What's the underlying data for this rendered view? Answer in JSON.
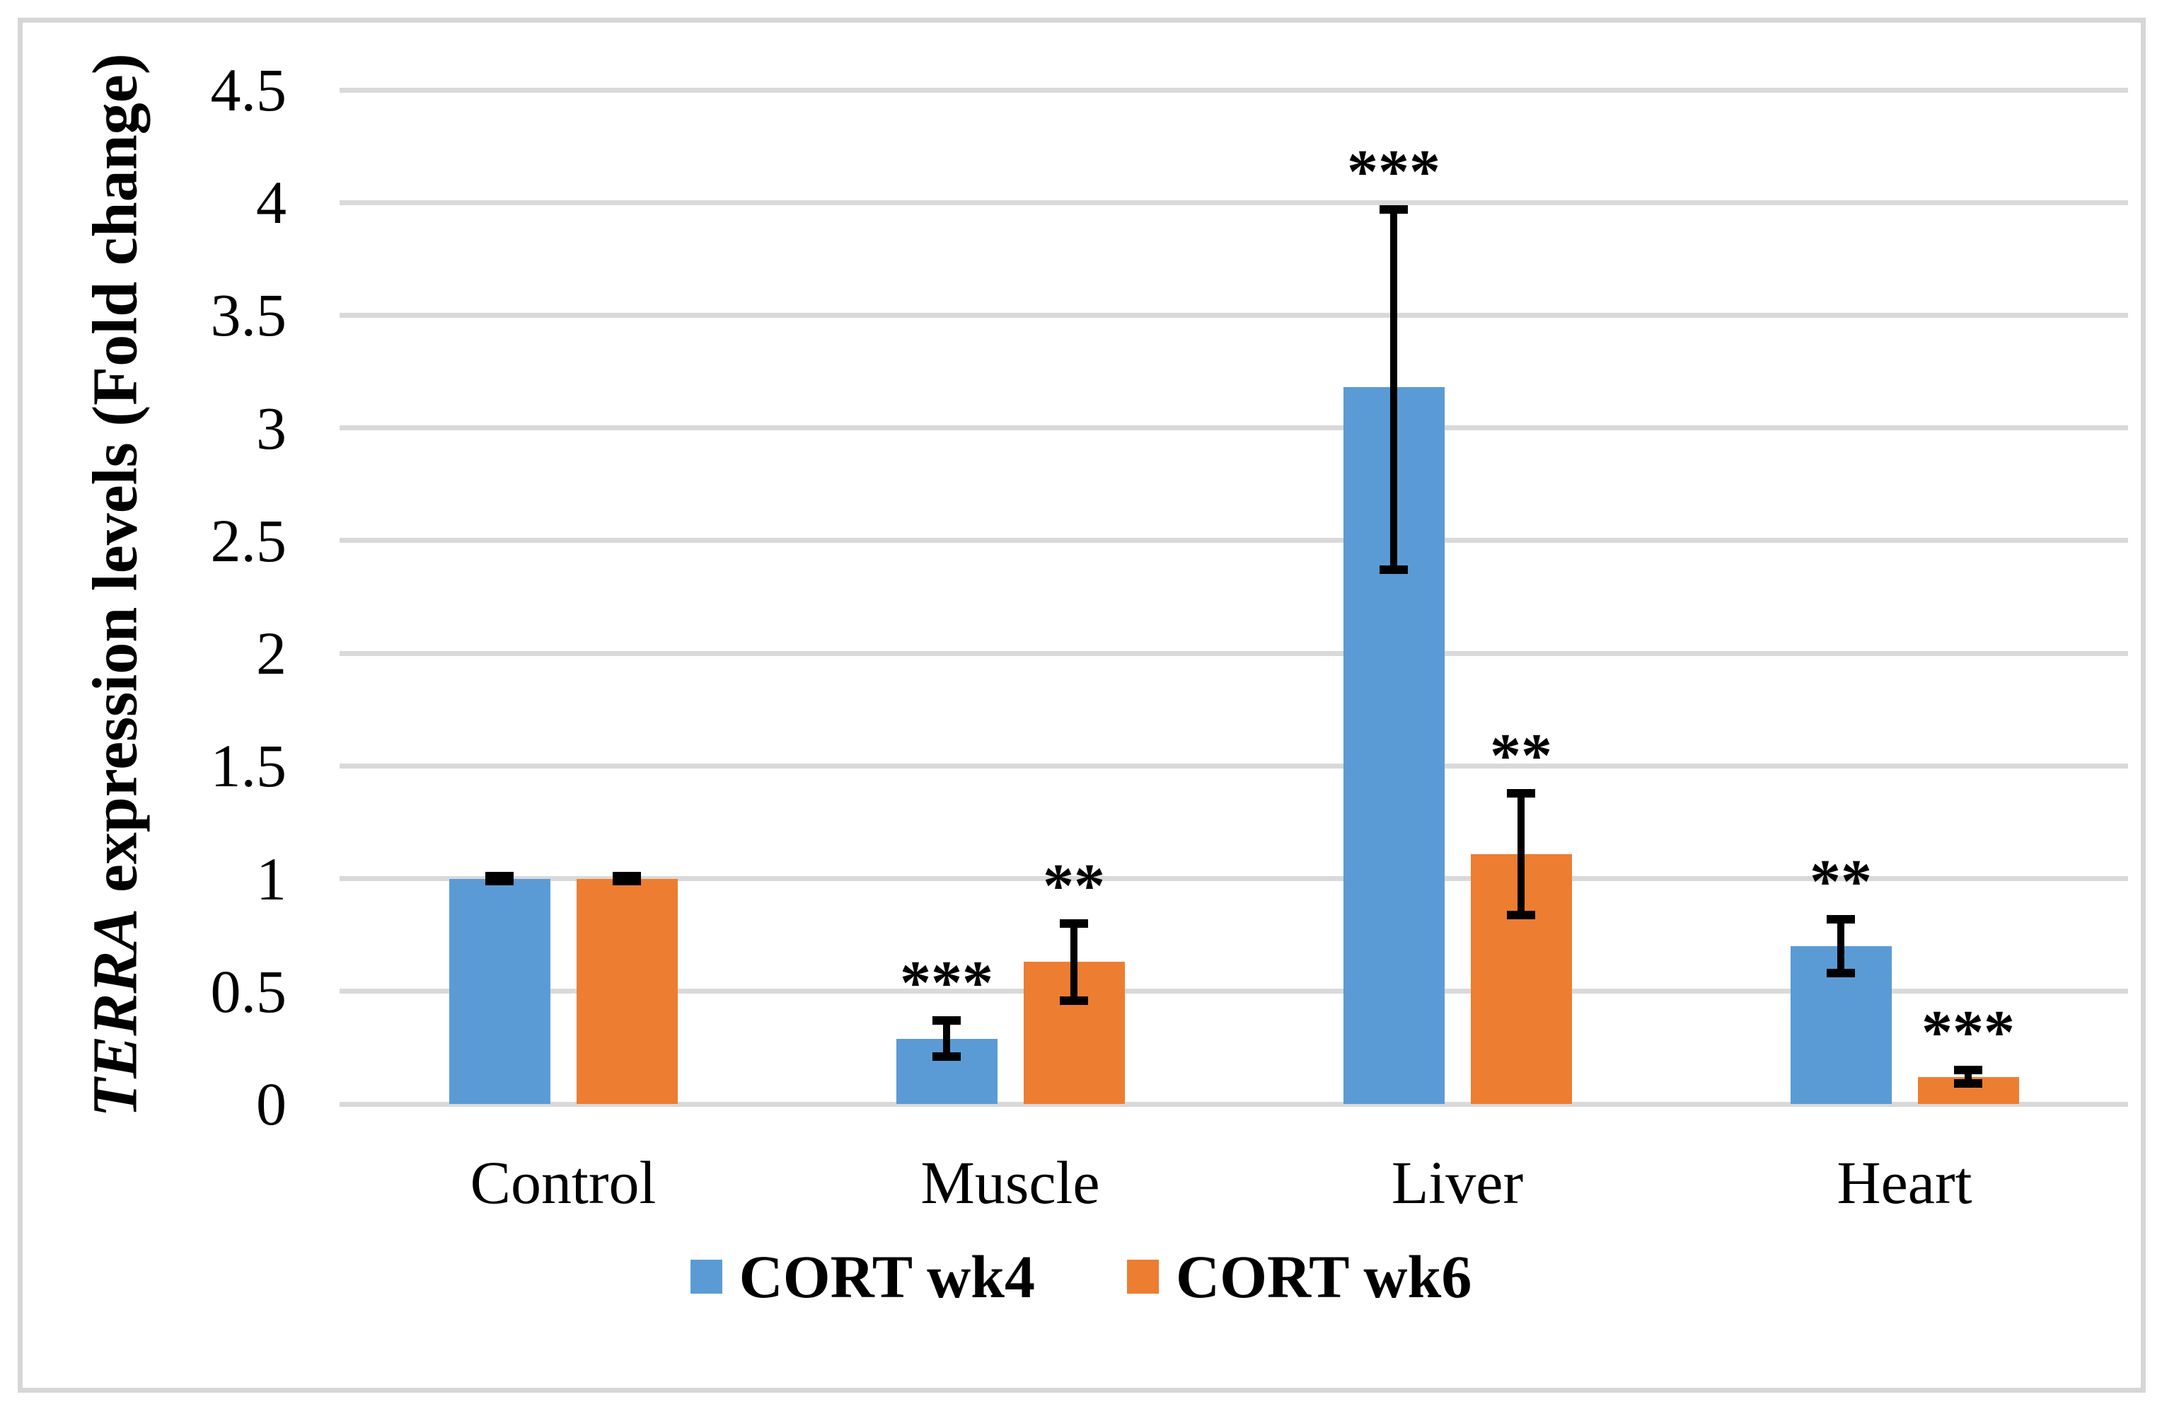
{
  "chart_data": {
    "type": "bar",
    "title": "",
    "categories": [
      "Control",
      "Muscle",
      "Liver",
      "Heart"
    ],
    "series": [
      {
        "name": "CORT wk4",
        "color": "#5B9BD5",
        "values": [
          1.0,
          0.29,
          3.18,
          0.7
        ],
        "error_low": [
          0.99,
          0.21,
          2.37,
          0.58
        ],
        "error_high": [
          1.01,
          0.37,
          3.97,
          0.82
        ],
        "significance": [
          "",
          "***",
          "***",
          "**"
        ]
      },
      {
        "name": "CORT wk6",
        "color": "#ED7D31",
        "values": [
          1.0,
          0.63,
          1.11,
          0.12
        ],
        "error_low": [
          0.99,
          0.46,
          0.84,
          0.09
        ],
        "error_high": [
          1.01,
          0.8,
          1.38,
          0.15
        ],
        "significance": [
          "",
          "**",
          "**",
          "***"
        ]
      }
    ],
    "ylabel_italic": "TERRA",
    "ylabel_rest": " expression levels (Fold change)",
    "xlabel": "",
    "ylim": [
      0,
      4.5
    ],
    "ytick_step": 0.5,
    "yticks": [
      "0",
      "0.5",
      "1",
      "1.5",
      "2",
      "2.5",
      "3",
      "3.5",
      "4",
      "4.5"
    ],
    "grid": true,
    "gridline_color": "#D9D9D9",
    "error_bar_color": "#000000",
    "significance_color": "#000000",
    "legend_position": "bottom"
  }
}
